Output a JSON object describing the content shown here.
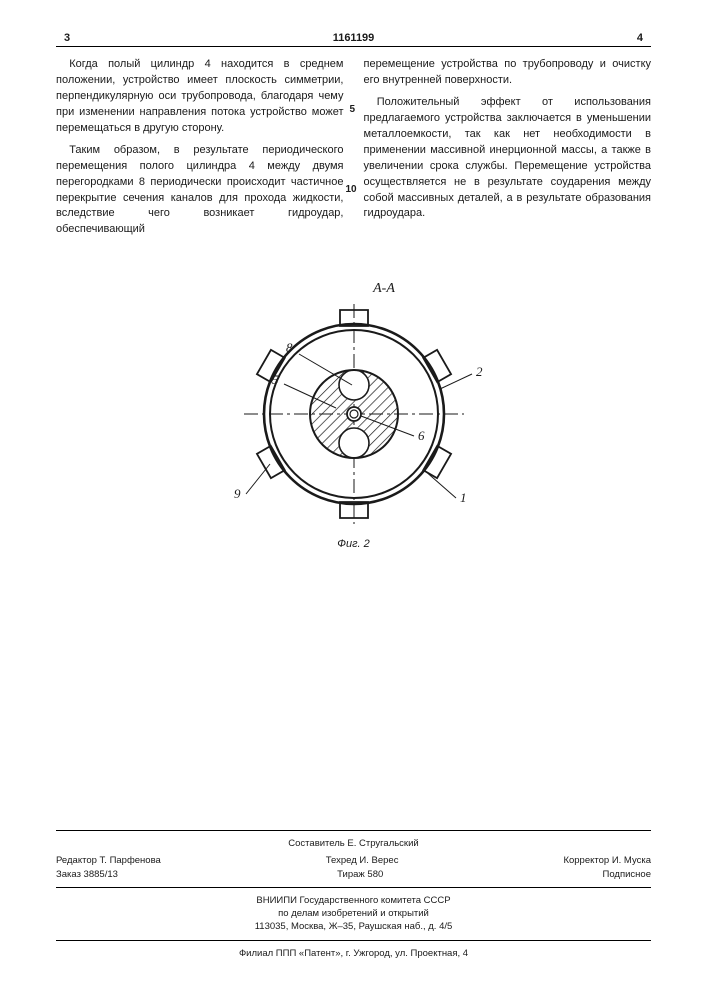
{
  "doc_number": "1161199",
  "col_left_num": "3",
  "col_right_num": "4",
  "line_num_5": "5",
  "line_num_10": "10",
  "left_col": {
    "p1": "Когда полый цилиндр 4 находится в среднем положении, устройство имеет плоскость симметрии, перпендикулярную оси трубопровода, благодаря чему при изменении направления потока устройство может перемещаться в другую сторону.",
    "p2": "Таким образом, в результате периодического перемещения полого цилиндра 4 между двумя перегородками 8 периодически происходит частичное перекрытие сечения каналов для прохода жидкости, вследствие чего возникает гидроудар, обеспечивающий"
  },
  "right_col": {
    "p1": "перемещение устройства по трубопроводу и очистку его внутренней поверхности.",
    "p2": "Положительный эффект от использования предлагаемого устройства заключается в уменьшении металлоемкости, так как нет необходимости в применении массивной инерционной массы, а также в увеличении срока службы. Перемещение устройства осуществляется не в результате соударения между собой массивных деталей, а в результате образования гидроудара."
  },
  "figure": {
    "section_label": "А-А",
    "caption": "Фиг. 2",
    "labels": {
      "l1": "1",
      "l2": "2",
      "l5": "5",
      "l6": "6",
      "l8": "8",
      "l9": "9"
    },
    "colors": {
      "stroke": "#1a1a1a",
      "fill": "#ffffff",
      "hatch": "#1a1a1a"
    },
    "outer_radius": 90,
    "ring_gap": 6,
    "inner_radius": 44,
    "hub_radius": 7,
    "lug_count": 6,
    "lug_len": 14,
    "lug_width": 28,
    "lobe_radius": 15
  },
  "footer": {
    "compiler": "Составитель Е. Стругальский",
    "editor": "Редактор Т. Парфенова",
    "tech": "Техред И. Верес",
    "corrector": "Корректор И. Муска",
    "order": "Заказ 3885/13",
    "tirazh": "Тираж 580",
    "podpis": "Подписное",
    "org1": "ВНИИПИ Государственного комитета СССР",
    "org2": "по делам изобретений и открытий",
    "addr1": "113035, Москва, Ж–35, Раушская наб., д. 4/5",
    "addr2": "Филиал ППП «Патент», г. Ужгород, ул. Проектная, 4"
  }
}
